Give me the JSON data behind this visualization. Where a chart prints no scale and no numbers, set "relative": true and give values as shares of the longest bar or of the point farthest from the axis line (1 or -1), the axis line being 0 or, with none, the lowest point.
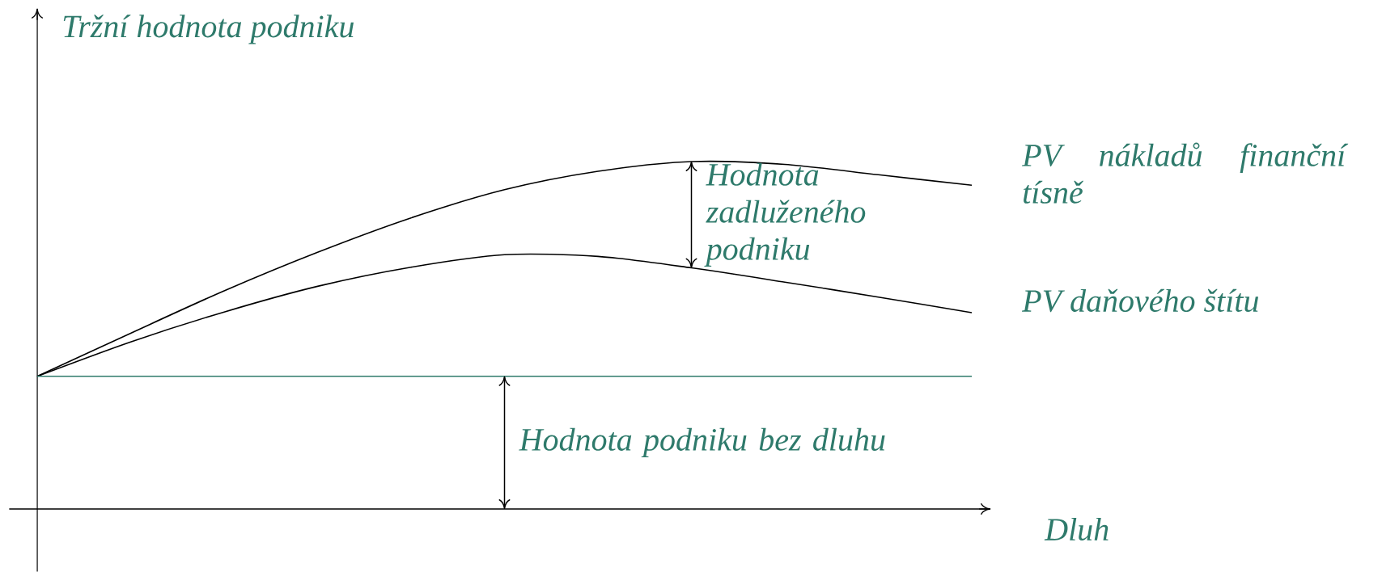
{
  "chart_data": {
    "type": "line",
    "relative": true,
    "ylabel": "Tržní hodnota podniku",
    "xlabel": "Dluh",
    "categories": [
      null,
      null,
      null,
      null,
      null,
      null,
      null,
      null,
      null,
      null,
      null
    ],
    "series": [
      {
        "name": "PV nákladů finanční tísně",
        "color": "#000000",
        "values": [
          0.382,
          0.506,
          0.628,
          0.739,
          0.838,
          0.919,
          0.972,
          1.0,
          0.992,
          0.962,
          0.932
        ]
      },
      {
        "name": "PV daňového štítu",
        "color": "#000000",
        "values": [
          0.382,
          0.481,
          0.567,
          0.641,
          0.696,
          0.732,
          0.727,
          0.694,
          0.653,
          0.61,
          0.565
        ]
      },
      {
        "color": "#2e7a6b",
        "values": [
          0.382,
          0.382,
          0.382,
          0.382,
          0.382,
          0.382,
          0.382,
          0.382,
          0.382,
          0.382,
          0.382
        ]
      }
    ],
    "annotations": [
      "Hodnota zadluženého podniku",
      "Hodnota podniku bez dluhu"
    ]
  }
}
